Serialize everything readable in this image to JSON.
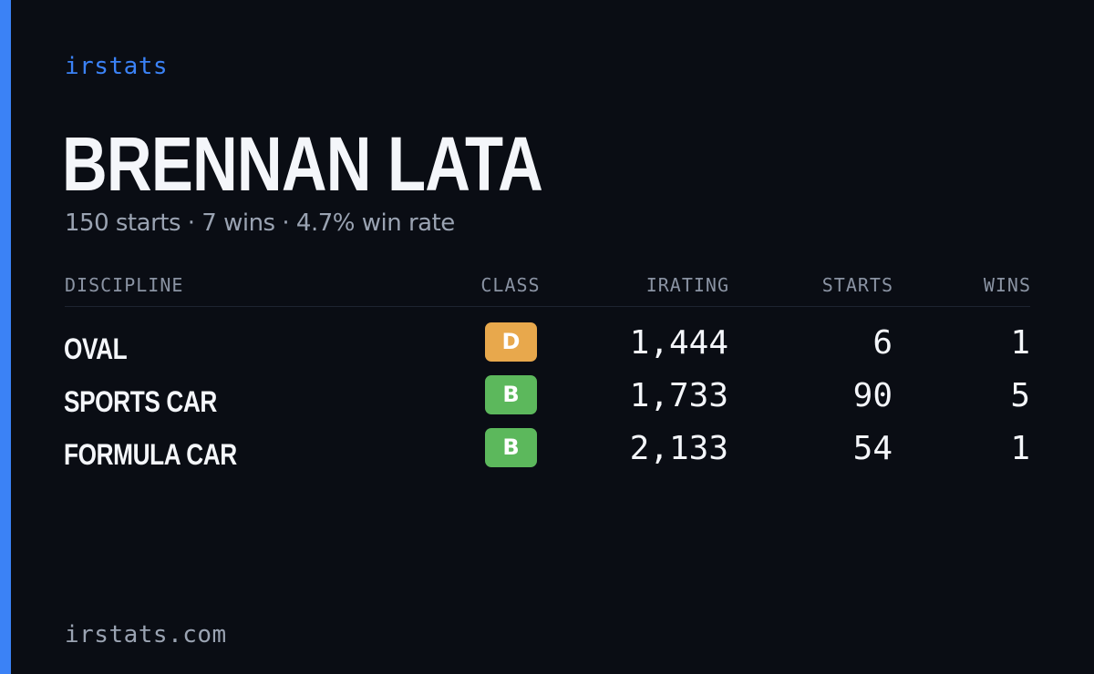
{
  "brand": {
    "name": "irstats",
    "color": "#3b82f6"
  },
  "player": {
    "name": "BRENNAN LATA",
    "summary": "150 starts · 7 wins · 4.7% win rate"
  },
  "table": {
    "headers": {
      "discipline": "DISCIPLINE",
      "class": "CLASS",
      "irating": "IRATING",
      "starts": "STARTS",
      "wins": "WINS"
    },
    "rows": [
      {
        "discipline": "OVAL",
        "class": "D",
        "class_color": "#e8a84c",
        "irating": "1,444",
        "starts": "6",
        "wins": "1"
      },
      {
        "discipline": "SPORTS CAR",
        "class": "B",
        "class_color": "#5cb85c",
        "irating": "1,733",
        "starts": "90",
        "wins": "5"
      },
      {
        "discipline": "FORMULA CAR",
        "class": "B",
        "class_color": "#5cb85c",
        "irating": "2,133",
        "starts": "54",
        "wins": "1"
      }
    ]
  },
  "footer": {
    "site": "irstats.com"
  }
}
